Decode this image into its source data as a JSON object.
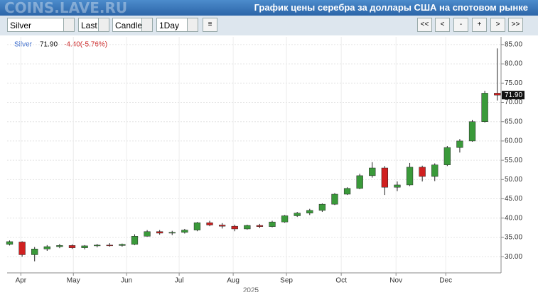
{
  "header": {
    "watermark": "COINS.LAVE.RU",
    "title": "График цены серебра за доллары США на спотовом рынке"
  },
  "toolbar": {
    "selects": [
      "Silver",
      "Last",
      "Candle",
      "1Day"
    ],
    "buttons": [
      "<<",
      "<",
      "-",
      "+",
      ">",
      ">>"
    ]
  },
  "chart_data": {
    "type": "candlestick",
    "legend": {
      "name": "Silver",
      "last": "71.90",
      "change": "-4.40(-5.76%)"
    },
    "year_label": "2025",
    "up_color": "#3a9a3a",
    "down_color": "#d02020",
    "grid": true,
    "categories": [
      null,
      null,
      null,
      null,
      null,
      null,
      null,
      null,
      null,
      null,
      null,
      null,
      null,
      null,
      null,
      null,
      null,
      null,
      null,
      null,
      null,
      null,
      null,
      null,
      null,
      null,
      null,
      null,
      null,
      null,
      null,
      null,
      null,
      null,
      null,
      null,
      null,
      null,
      null,
      null
    ],
    "series": [
      {
        "name": "Silver",
        "open": [
          33.2,
          33.8,
          30.5,
          32.0,
          32.6,
          32.9,
          32.3,
          32.8,
          33.0,
          32.9,
          33.2,
          35.3,
          36.5,
          36.1,
          36.3,
          36.9,
          38.8,
          38.2,
          37.9,
          37.2,
          38.1,
          37.8,
          39.0,
          40.6,
          41.3,
          42.0,
          43.6,
          46.2,
          47.7,
          51.0,
          53.0,
          48.0,
          48.6,
          53.2,
          50.8,
          53.8,
          58.3,
          60.0,
          65.0,
          72.4
        ],
        "high": [
          34.2,
          34.0,
          32.5,
          33.0,
          33.3,
          33.2,
          33.0,
          33.3,
          33.5,
          33.4,
          35.8,
          36.9,
          36.9,
          36.7,
          37.2,
          39.0,
          39.3,
          38.7,
          38.3,
          38.3,
          38.5,
          39.3,
          40.8,
          41.6,
          42.4,
          43.8,
          46.5,
          48.0,
          51.5,
          54.5,
          53.5,
          49.5,
          54.3,
          53.6,
          54.2,
          58.7,
          60.5,
          65.5,
          73.0,
          84.0
        ],
        "low": [
          32.9,
          30.0,
          28.8,
          31.5,
          32.2,
          32.0,
          31.9,
          32.4,
          32.6,
          32.6,
          33.0,
          35.2,
          35.7,
          35.6,
          36.0,
          36.6,
          37.9,
          37.3,
          36.6,
          37.0,
          37.4,
          37.6,
          38.8,
          40.3,
          40.8,
          41.6,
          43.4,
          46.0,
          47.5,
          50.5,
          46.0,
          47.0,
          48.3,
          49.5,
          49.6,
          53.5,
          57.0,
          59.8,
          64.8,
          70.5
        ],
        "close": [
          33.9,
          30.5,
          32.0,
          32.6,
          32.9,
          32.3,
          32.8,
          33.0,
          32.9,
          33.2,
          35.3,
          36.5,
          36.1,
          36.3,
          36.9,
          38.8,
          38.2,
          37.9,
          37.2,
          38.1,
          37.8,
          39.0,
          40.6,
          41.3,
          42.0,
          43.6,
          46.2,
          47.7,
          51.0,
          53.0,
          48.0,
          48.6,
          53.2,
          50.8,
          53.8,
          58.3,
          60.0,
          65.0,
          72.4,
          71.9
        ]
      }
    ],
    "xlim": [
      -0.2,
      39.3
    ],
    "xticks": [
      {
        "value": 0.9,
        "label": "Apr"
      },
      {
        "value": 5.1,
        "label": "May"
      },
      {
        "value": 9.35,
        "label": "Jun"
      },
      {
        "value": 13.56,
        "label": "Jul"
      },
      {
        "value": 17.88,
        "label": "Aug"
      },
      {
        "value": 22.14,
        "label": "Sep"
      },
      {
        "value": 26.52,
        "label": "Oct"
      },
      {
        "value": 30.9,
        "label": "Nov"
      },
      {
        "value": 34.88,
        "label": "Dec"
      }
    ],
    "ylim": [
      25.8,
      87
    ],
    "yticks": [
      {
        "value": 30,
        "label": "30.00"
      },
      {
        "value": 35,
        "label": "35.00"
      },
      {
        "value": 40,
        "label": "40.00"
      },
      {
        "value": 45,
        "label": "45.00"
      },
      {
        "value": 50,
        "label": "50.00"
      },
      {
        "value": 55,
        "label": "55.00"
      },
      {
        "value": 60,
        "label": "60.00"
      },
      {
        "value": 65,
        "label": "65.00"
      },
      {
        "value": 70,
        "label": "70.00"
      },
      {
        "value": 75,
        "label": "75.00"
      },
      {
        "value": 80,
        "label": "80.00"
      },
      {
        "value": 85,
        "label": "85.00"
      }
    ]
  }
}
